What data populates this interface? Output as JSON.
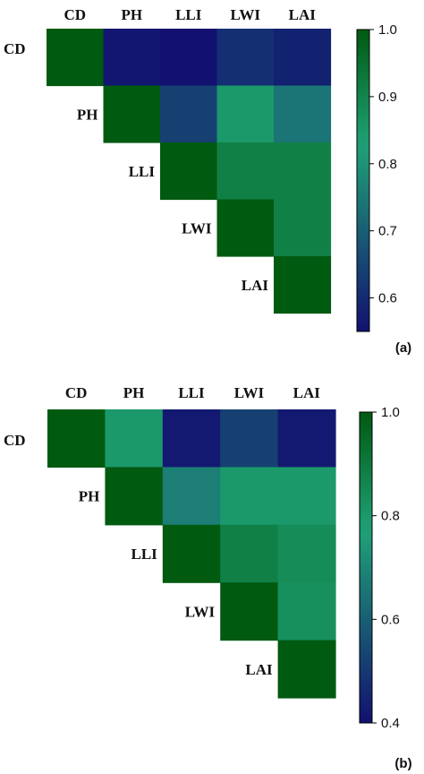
{
  "chart_data": [
    {
      "type": "heatmap",
      "panel_label": "(a)",
      "variables": [
        "CD",
        "PH",
        "LLI",
        "LWI",
        "LAI"
      ],
      "matrix": [
        [
          1.0,
          0.56,
          0.55,
          0.61,
          0.58
        ],
        [
          null,
          1.0,
          0.64,
          0.85,
          0.74
        ],
        [
          null,
          null,
          1.0,
          0.91,
          0.91
        ],
        [
          null,
          null,
          null,
          1.0,
          0.91
        ],
        [
          null,
          null,
          null,
          null,
          1.0
        ]
      ],
      "colorbar": {
        "min": 0.55,
        "max": 1.0,
        "ticks": [
          "1.0",
          "0.9",
          "0.8",
          "0.7",
          "0.6"
        ],
        "tick_values": [
          1.0,
          0.9,
          0.8,
          0.7,
          0.6
        ]
      }
    },
    {
      "type": "heatmap",
      "panel_label": "(b)",
      "variables": [
        "CD",
        "PH",
        "LLI",
        "LWI",
        "LAI"
      ],
      "matrix": [
        [
          1.0,
          0.8,
          0.42,
          0.52,
          0.42
        ],
        [
          null,
          1.0,
          0.68,
          0.8,
          0.8
        ],
        [
          null,
          null,
          1.0,
          0.88,
          0.84
        ],
        [
          null,
          null,
          null,
          1.0,
          0.83
        ],
        [
          null,
          null,
          null,
          null,
          1.0
        ]
      ],
      "colorbar": {
        "min": 0.4,
        "max": 1.0,
        "ticks": [
          "1.0",
          "0.8",
          "0.6",
          "0.4"
        ],
        "tick_values": [
          1.0,
          0.8,
          0.6,
          0.4
        ]
      }
    }
  ],
  "colors": {
    "low": "#121170",
    "mid": "#1fa277",
    "high": "#005a10"
  }
}
